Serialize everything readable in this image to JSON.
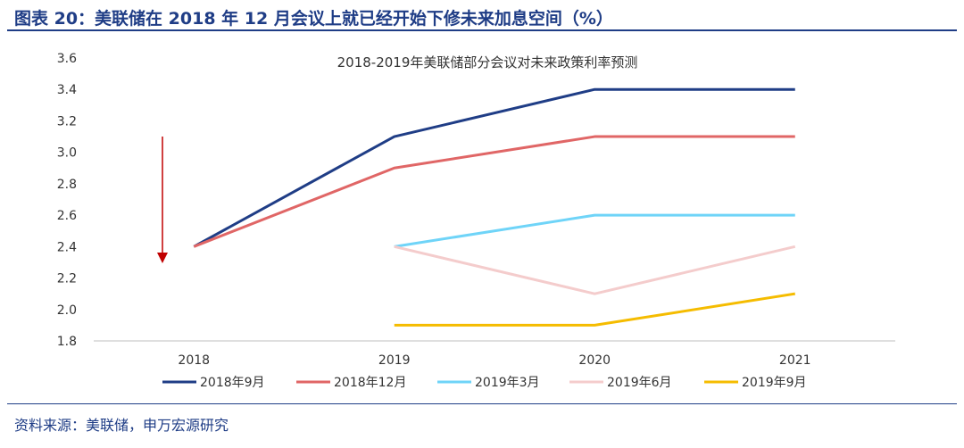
{
  "figure": {
    "title": "图表 20：美联储在 2018 年 12 月会议上就已经开始下修未来加息空间（%）",
    "source": "资料来源：美联储，申万宏源研究"
  },
  "chart_data": {
    "type": "line",
    "title": "2018-2019年美联储部分会议对未来政策利率预测",
    "categories": [
      "2018",
      "2019",
      "2020",
      "2021"
    ],
    "y_ticks": [
      "3.6",
      "3.4",
      "3.2",
      "3.0",
      "2.8",
      "2.6",
      "2.4",
      "2.2",
      "2.0",
      "1.8"
    ],
    "ylim": [
      1.8,
      3.6
    ],
    "series": [
      {
        "name": "2018年9月",
        "color": "#1f3d86",
        "values": [
          2.4,
          3.1,
          3.4,
          3.4
        ]
      },
      {
        "name": "2018年12月",
        "color": "#e06666",
        "values": [
          2.4,
          2.9,
          3.1,
          3.1
        ]
      },
      {
        "name": "2019年3月",
        "color": "#6fd4f8",
        "values": [
          null,
          2.4,
          2.6,
          2.6
        ]
      },
      {
        "name": "2019年6月",
        "color": "#f4cccc",
        "values": [
          null,
          2.4,
          2.1,
          2.4
        ]
      },
      {
        "name": "2019年9月",
        "color": "#f5bc00",
        "values": [
          null,
          1.9,
          1.9,
          2.1
        ]
      }
    ],
    "annotation": {
      "type": "down-arrow",
      "color": "#c00000",
      "from": 3.1,
      "to": 2.3,
      "position": "left of 2018"
    }
  }
}
